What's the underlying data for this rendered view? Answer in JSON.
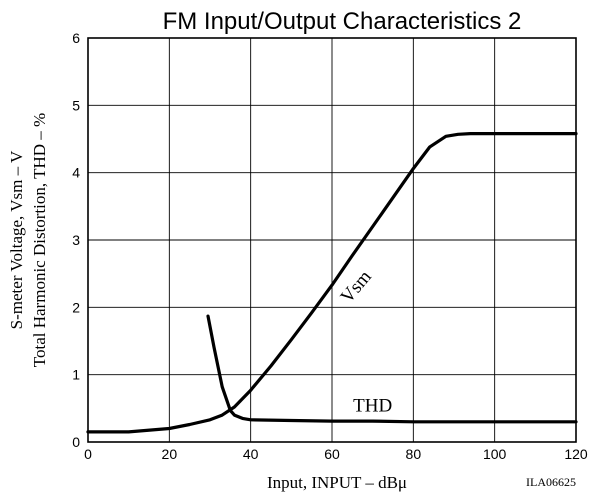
{
  "chart_data": {
    "type": "line",
    "title": "FM Input/Output Characteristics 2",
    "xlabel": "Input, INPUT – dBμ",
    "ylabel": [
      "S-meter Voltage, Vsm – V",
      "Total Harmonic Distortion, THD – %"
    ],
    "xlim": [
      0,
      120
    ],
    "ylim": [
      0,
      6
    ],
    "xticks": [
      0,
      20,
      40,
      60,
      80,
      100,
      120
    ],
    "yticks": [
      0,
      1,
      2,
      3,
      4,
      5,
      6
    ],
    "grid": true,
    "figure_code": "ILA06625",
    "series": [
      {
        "name": "Vsm",
        "label_at": [
          67,
          2.25
        ],
        "x": [
          0,
          10,
          20,
          25,
          30,
          33,
          36,
          40,
          45,
          50,
          55,
          60,
          65,
          70,
          75,
          80,
          84,
          88,
          91,
          94,
          97,
          100,
          110,
          120
        ],
        "y": [
          0.15,
          0.15,
          0.2,
          0.26,
          0.33,
          0.4,
          0.52,
          0.77,
          1.13,
          1.52,
          1.92,
          2.33,
          2.77,
          3.2,
          3.63,
          4.06,
          4.38,
          4.54,
          4.57,
          4.58,
          4.58,
          4.58,
          4.58,
          4.58
        ]
      },
      {
        "name": "THD",
        "label_at": [
          70,
          0.45
        ],
        "x": [
          29.5,
          31,
          33,
          35,
          36,
          38,
          40,
          50,
          60,
          70,
          80,
          90,
          100,
          110,
          120
        ],
        "y": [
          1.87,
          1.4,
          0.82,
          0.47,
          0.4,
          0.35,
          0.33,
          0.32,
          0.31,
          0.31,
          0.3,
          0.3,
          0.3,
          0.3,
          0.3
        ]
      }
    ]
  }
}
